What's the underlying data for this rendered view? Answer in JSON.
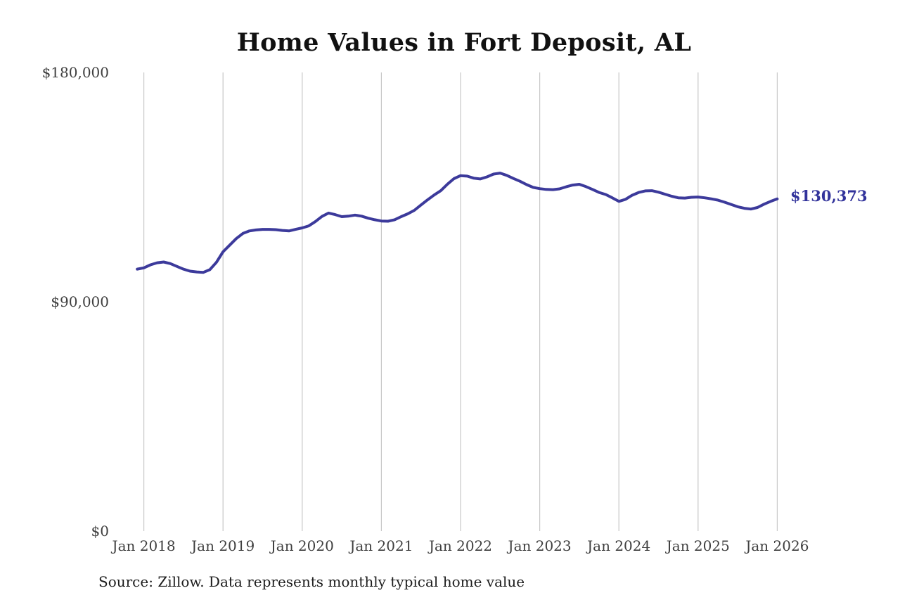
{
  "title": "Home Values in Fort Deposit, AL",
  "annotation": {
    "latest_value_label": "$130,373"
  },
  "source_note": "Source: Zillow. Data represents monthly typical home value",
  "colors": {
    "line": "#3c3a9b",
    "annotation_text": "#32339b",
    "gridline": "#c7c7c7",
    "axis_text": "#3f3f3f",
    "title_text": "#111111",
    "source_text": "#1c1c1c",
    "background": "#ffffff"
  },
  "chart_data": {
    "type": "line",
    "title": "Home Values in Fort Deposit, AL",
    "xlabel": "",
    "ylabel": "",
    "ylim": [
      0,
      180000
    ],
    "grid": "vertical-yearly",
    "legend": "none",
    "y_ticks": [
      {
        "label": "$0",
        "value": 0
      },
      {
        "label": "$90,000",
        "value": 90000
      },
      {
        "label": "$180,000",
        "value": 180000
      }
    ],
    "x_tick_labels": [
      "Jan 2018",
      "Jan 2019",
      "Jan 2020",
      "Jan 2021",
      "Jan 2022",
      "Jan 2023",
      "Jan 2024",
      "Jan 2025",
      "Jan 2026"
    ],
    "latest_value": 130373,
    "series": [
      {
        "name": "Monthly typical home value (ZHVI)",
        "start": "Dec 2017",
        "end": "Jan 2026",
        "interval": "monthly",
        "months_before_first_tick": 1,
        "values": [
          102800,
          103300,
          104500,
          105300,
          105600,
          105000,
          103900,
          102800,
          102000,
          101700,
          101500,
          102600,
          105500,
          109600,
          112200,
          114800,
          116800,
          117800,
          118200,
          118400,
          118400,
          118300,
          118000,
          117800,
          118400,
          119000,
          119800,
          121500,
          123500,
          124800,
          124200,
          123400,
          123600,
          124000,
          123600,
          122800,
          122200,
          121700,
          121600,
          122200,
          123400,
          124500,
          125900,
          128000,
          130000,
          131900,
          133600,
          136100,
          138300,
          139500,
          139300,
          138500,
          138200,
          139000,
          140100,
          140500,
          139600,
          138400,
          137300,
          136000,
          134900,
          134400,
          134100,
          134000,
          134300,
          135100,
          135800,
          136100,
          135200,
          134100,
          132900,
          132100,
          130800,
          129400,
          130200,
          131800,
          132900,
          133500,
          133600,
          133000,
          132200,
          131400,
          130800,
          130700,
          131000,
          131100,
          130800,
          130400,
          129900,
          129100,
          128200,
          127300,
          126700,
          126400,
          127000,
          128300,
          129400,
          130373
        ]
      }
    ]
  }
}
